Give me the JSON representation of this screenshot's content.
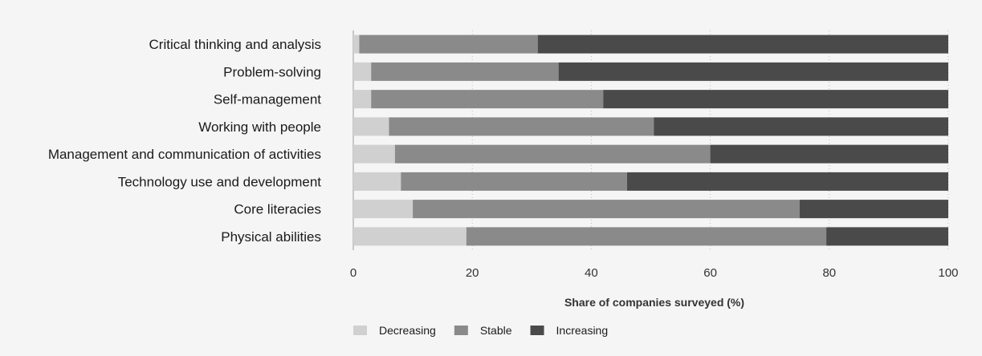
{
  "chart_data": {
    "type": "bar",
    "orientation": "horizontal",
    "stacked": true,
    "title": "",
    "xlabel": "Share of companies surveyed (%)",
    "ylabel": "",
    "xlim": [
      0,
      100
    ],
    "xticks": [
      0,
      20,
      40,
      60,
      80,
      100
    ],
    "grid": "vertical dotted",
    "legend_position": "bottom",
    "categories": [
      "Critical thinking and analysis",
      "Problem-solving",
      "Self-management",
      "Working with people",
      "Management and communication of activities",
      "Technology use and development",
      "Core literacies",
      "Physical abilities"
    ],
    "series": [
      {
        "name": "Decreasing",
        "color": "#d0d0d0",
        "values": [
          1,
          3,
          3,
          6,
          7,
          8,
          10,
          19
        ]
      },
      {
        "name": "Stable",
        "color": "#8a8a8a",
        "values": [
          30,
          31.5,
          39,
          44.5,
          53,
          38,
          65,
          60.5
        ]
      },
      {
        "name": "Increasing",
        "color": "#4a4a4a",
        "values": [
          69,
          65.5,
          58,
          49.5,
          40,
          54,
          25,
          20.5
        ]
      }
    ]
  }
}
